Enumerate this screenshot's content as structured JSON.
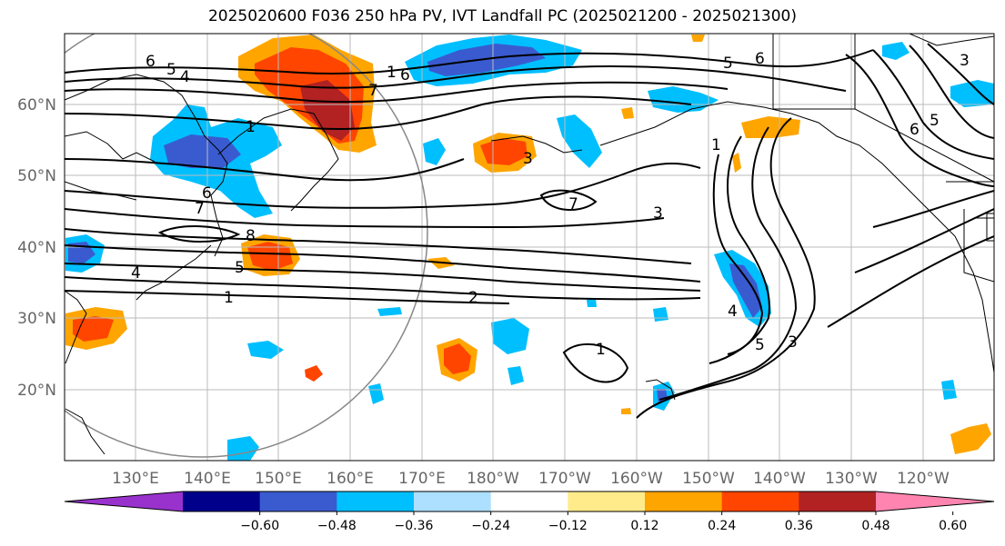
{
  "title": "2025020600 F036 250 hPa PV, IVT Landfall PC (2025021200 - 2025021300)",
  "lat_ticks": [
    "60°N",
    "50°N",
    "40°N",
    "30°N",
    "20°N"
  ],
  "lon_ticks": [
    "130°E",
    "140°E",
    "150°E",
    "160°E",
    "170°E",
    "180°W",
    "170°W",
    "160°W",
    "150°W",
    "140°W",
    "130°W",
    "120°W"
  ],
  "colorbar": {
    "colors": [
      "#9932CC",
      "#00008B",
      "#3A5BCF",
      "#00BFFF",
      "#ADDFFF",
      "#FFFFFF",
      "#FFEB8A",
      "#FFA500",
      "#FF4500",
      "#B22222",
      "#FF85B0"
    ],
    "tick_labels": [
      "−0.60",
      "−0.48",
      "−0.36",
      "−0.24",
      "−0.12",
      "0.12",
      "0.24",
      "0.36",
      "0.48",
      "0.60"
    ]
  },
  "contour_labels": [
    "6",
    "5",
    "4",
    "1",
    "6",
    "7",
    "8",
    "5",
    "4",
    "1",
    "2",
    "1",
    "7",
    "3",
    "1",
    "6",
    "5",
    "3",
    "4",
    "5",
    "6",
    "7",
    "3",
    "5",
    "6",
    "1",
    "3"
  ]
}
